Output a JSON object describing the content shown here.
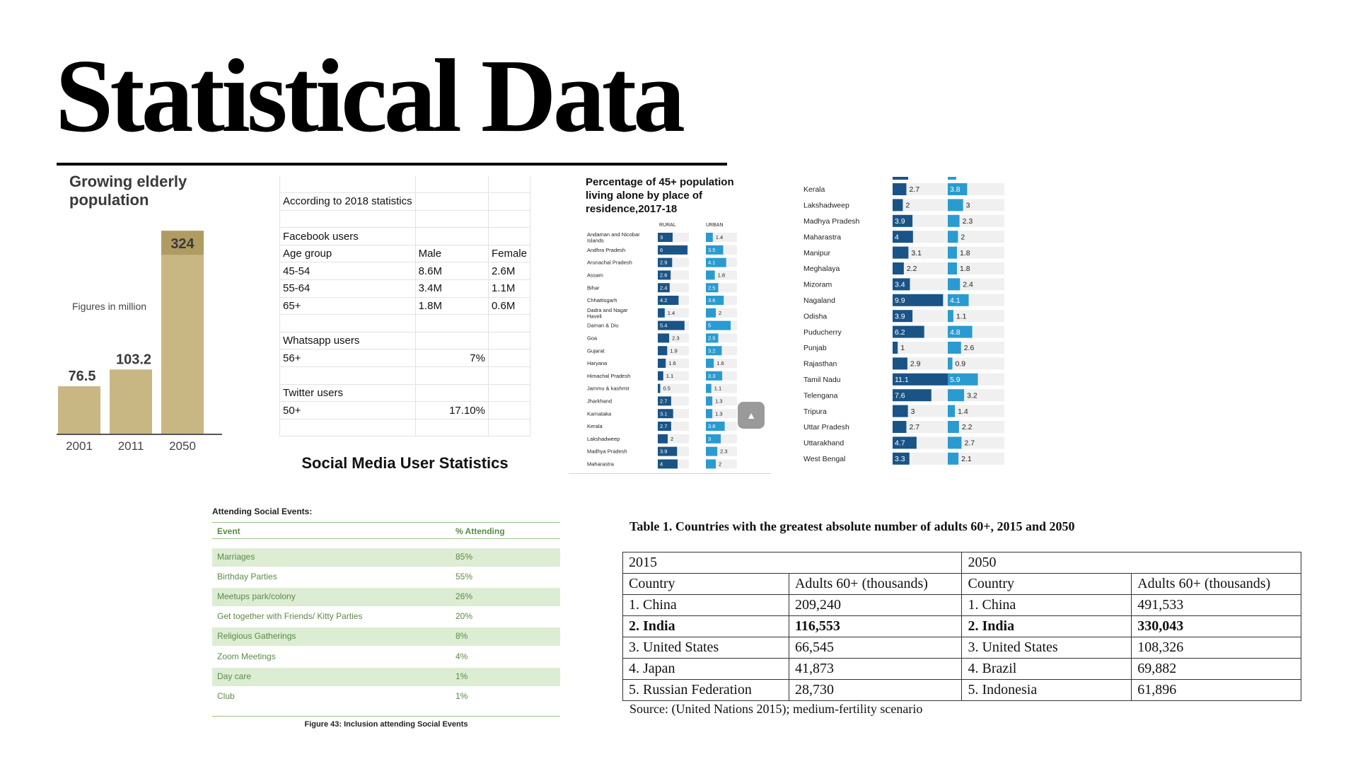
{
  "slide": {
    "title": "Statistical Data"
  },
  "chart_data": [
    {
      "type": "bar",
      "title": "Growing elderly population",
      "note": "Figures in million",
      "categories": [
        "2001",
        "2011",
        "2050"
      ],
      "values": [
        76.5,
        103.2,
        324
      ],
      "value_labels": [
        "76.5",
        "103.2",
        "324"
      ],
      "ylim": [
        0,
        340
      ],
      "grid": false,
      "colors": {
        "bar": "#c9b783",
        "highlight_label_bg": "#b09c62",
        "axis": "#555555"
      }
    },
    {
      "type": "bar",
      "orientation": "horizontal",
      "title": "Percentage of 45+ population living alone by place of residence,2017-18",
      "column_headers": [
        "RURAL",
        "URBAN"
      ],
      "categories": [
        "Andaman and Nicobar Islands",
        "Andhra Pradesh",
        "Arunachal Pradesh",
        "Assam",
        "Bihar",
        "Chhattisgarh",
        "Dadra and Nagar Haveli",
        "Daman & Diu",
        "Goa",
        "Gujarat",
        "Haryana",
        "Himachal Pradesh",
        "Jammu & kashmir",
        "Jharkhand",
        "Karnataka",
        "Kerala",
        "Lakshadweep",
        "Madhya Pradesh",
        "Maharastra"
      ],
      "series": [
        {
          "name": "RURAL",
          "values": [
            3,
            6,
            2.9,
            2.6,
            2.4,
            4.2,
            1.4,
            5.4,
            2.3,
            1.9,
            1.6,
            1.1,
            0.5,
            2.7,
            3.1,
            2.7,
            2,
            3.9,
            4
          ]
        },
        {
          "name": "URBAN",
          "values": [
            1.4,
            3.5,
            4.1,
            1.8,
            2.5,
            3.6,
            2,
            5,
            2.5,
            3.2,
            1.6,
            3.3,
            1.1,
            1.3,
            1.3,
            3.8,
            3,
            2.3,
            2
          ]
        }
      ],
      "xlim": [
        0,
        12
      ],
      "colors": {
        "rural": "#1a5486",
        "urban": "#2a9bd0",
        "track": "#f0f0f0"
      }
    },
    {
      "type": "bar",
      "orientation": "horizontal",
      "categories": [
        "Kerala",
        "Lakshadweep",
        "Madhya Pradesh",
        "Maharastra",
        "Manipur",
        "Meghalaya",
        "Mizoram",
        "Nagaland",
        "Odisha",
        "Puducherry",
        "Punjab",
        "Rajasthan",
        "Tamil Nadu",
        "Telengana",
        "Tripura",
        "Uttar Pradesh",
        "Uttarakhand",
        "West Bengal"
      ],
      "series": [
        {
          "name": "RURAL",
          "values": [
            2.7,
            2,
            3.9,
            4,
            3.1,
            2.2,
            3.4,
            9.9,
            3.9,
            6.2,
            1,
            2.9,
            11.1,
            7.6,
            3,
            2.7,
            4.7,
            3.3
          ]
        },
        {
          "name": "URBAN",
          "values": [
            3.8,
            3,
            2.3,
            2,
            1.8,
            1.8,
            2.4,
            4.1,
            1.1,
            4.8,
            2.6,
            0.9,
            5.9,
            3.2,
            1.4,
            2.2,
            2.7,
            2.1
          ]
        }
      ],
      "xlim": [
        0,
        11.1
      ],
      "colors": {
        "rural": "#1a5486",
        "urban": "#2a9bd0",
        "track": "#f0f0f0"
      }
    }
  ],
  "social_media": {
    "caption": "Social Media User Statistics",
    "rows": [
      [
        "",
        "",
        ""
      ],
      [
        "According to 2018 statistics",
        "",
        ""
      ],
      [
        "",
        "",
        ""
      ],
      [
        "Facebook users",
        "",
        ""
      ],
      [
        "Age group",
        "Male",
        "Female"
      ],
      [
        "45-54",
        "8.6M",
        "2.6M"
      ],
      [
        "55-64",
        "3.4M",
        "1.1M"
      ],
      [
        "65+",
        "1.8M",
        "0.6M"
      ],
      [
        "",
        "",
        ""
      ],
      [
        "Whatsapp users",
        "",
        ""
      ],
      [
        "56+",
        "7%",
        ""
      ],
      [
        "",
        "",
        ""
      ],
      [
        "Twitter users",
        "",
        ""
      ],
      [
        "50+",
        "17.10%",
        ""
      ],
      [
        "",
        "",
        ""
      ]
    ]
  },
  "events": {
    "title": "Attending Social Events:",
    "headers": [
      "Event",
      "% Attending"
    ],
    "rows": [
      [
        "Marriages",
        "85%"
      ],
      [
        "Birthday Parties",
        "55%"
      ],
      [
        "Meetups park/colony",
        "26%"
      ],
      [
        "Get together with Friends/ Kitty Parties",
        "20%"
      ],
      [
        "Religious Gatherings",
        "8%"
      ],
      [
        "Zoom Meetings",
        "4%"
      ],
      [
        "Day care",
        "1%"
      ],
      [
        "Club",
        "1%"
      ]
    ],
    "caption": "Figure 43: Inclusion attending Social Events"
  },
  "countries": {
    "caption": "Table 1. Countries with the greatest absolute number of adults 60+, 2015 and 2050",
    "years": [
      "2015",
      "2050"
    ],
    "headers": [
      "Country",
      "Adults 60+ (thousands)",
      "Country",
      "Adults 60+ (thousands)"
    ],
    "rows": [
      [
        "1. China",
        "209,240",
        "1. China",
        "491,533"
      ],
      [
        "2. India",
        "116,553",
        "2. India",
        "330,043"
      ],
      [
        "3. United States",
        "66,545",
        "3. United States",
        "108,326"
      ],
      [
        "4. Japan",
        "41,873",
        "4. Brazil",
        "69,882"
      ],
      [
        "5. Russian Federation",
        "28,730",
        "5. Indonesia",
        "61,896"
      ]
    ],
    "bold_row": 1,
    "source": "Source: (United Nations 2015); medium-fertility scenario"
  }
}
